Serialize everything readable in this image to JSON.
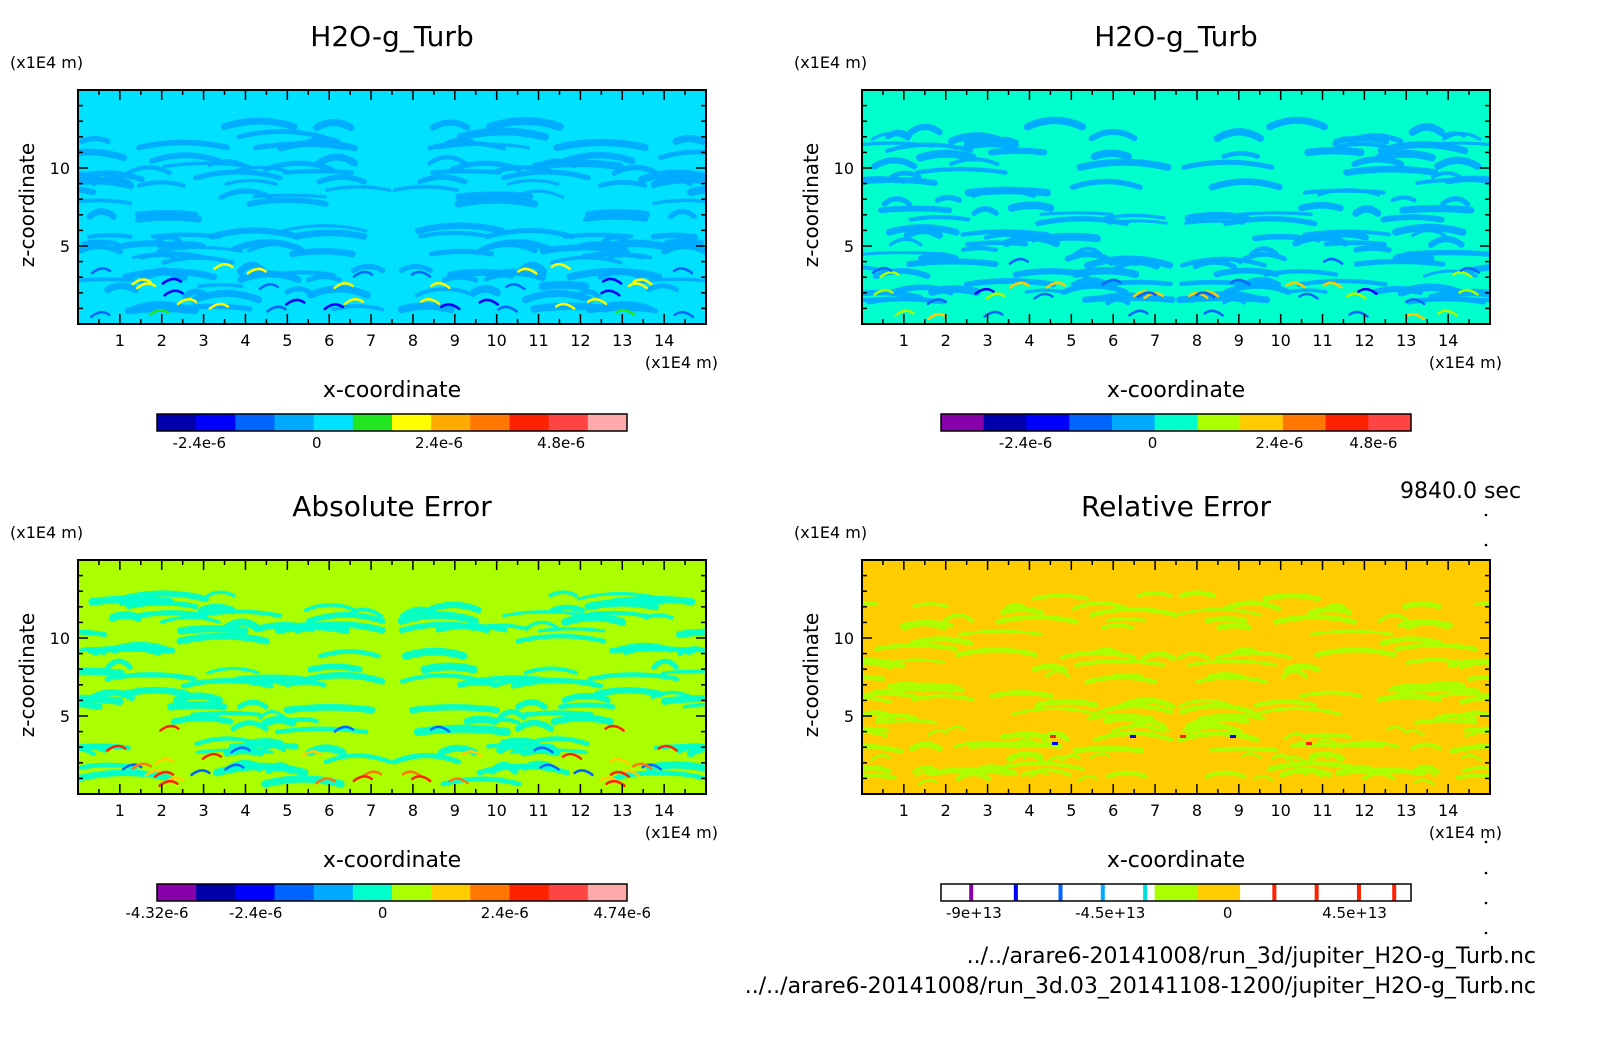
{
  "time_label": "9840.0 sec",
  "footer": {
    "file_1": "../../arare6-20141008/run_3d/jupiter_H2O-g_Turb.nc",
    "file_2": "../../arare6-20141008/run_3d.03_20141108-1200/jupiter_H2O-g_Turb.nc"
  },
  "chart_data": [
    {
      "type": "heatmap",
      "title": "H2O-g_Turb",
      "xlabel": "x-coordinate",
      "ylabel": "z-coordinate",
      "x_unit": "(x1E4 m)",
      "y_unit": "(x1E4 m)",
      "xlim": [
        0,
        15
      ],
      "ylim": [
        0,
        15
      ],
      "x_ticks": [
        "1",
        "2",
        "3",
        "4",
        "5",
        "6",
        "7",
        "8",
        "9",
        "10",
        "11",
        "12",
        "13",
        "14"
      ],
      "y_ticks": [
        "5",
        "10"
      ],
      "background": "#00e0ff",
      "colorbar": {
        "colors": [
          "#0000aa",
          "#0000ff",
          "#0064ff",
          "#00aaff",
          "#00e0ff",
          "#22e622",
          "#ffff00",
          "#ffaa00",
          "#ff7700",
          "#ff2200",
          "#ff4444",
          "#ffaaaa"
        ],
        "labels": [
          "-2.4e-6",
          "0",
          "2.4e-6",
          "4.8e-6"
        ]
      }
    },
    {
      "type": "heatmap",
      "title": "H2O-g_Turb",
      "xlabel": "x-coordinate",
      "ylabel": "z-coordinate",
      "x_unit": "(x1E4 m)",
      "y_unit": "(x1E4 m)",
      "xlim": [
        0,
        15
      ],
      "ylim": [
        0,
        15
      ],
      "x_ticks": [
        "1",
        "2",
        "3",
        "4",
        "5",
        "6",
        "7",
        "8",
        "9",
        "10",
        "11",
        "12",
        "13",
        "14"
      ],
      "y_ticks": [
        "5",
        "10"
      ],
      "background": "#00ffcc",
      "colorbar": {
        "colors": [
          "#8800aa",
          "#0000aa",
          "#0000ff",
          "#0064ff",
          "#00aaff",
          "#00ffcc",
          "#aaff00",
          "#ffcc00",
          "#ff7700",
          "#ff2200",
          "#ff4444"
        ],
        "labels": [
          "-2.4e-6",
          "0",
          "2.4e-6",
          "4.8e-6"
        ]
      }
    },
    {
      "type": "heatmap",
      "title": "Absolute Error",
      "xlabel": "x-coordinate",
      "ylabel": "z-coordinate",
      "x_unit": "(x1E4 m)",
      "y_unit": "(x1E4 m)",
      "xlim": [
        0,
        15
      ],
      "ylim": [
        0,
        15
      ],
      "x_ticks": [
        "1",
        "2",
        "3",
        "4",
        "5",
        "6",
        "7",
        "8",
        "9",
        "10",
        "11",
        "12",
        "13",
        "14"
      ],
      "y_ticks": [
        "5",
        "10"
      ],
      "background": "#aaff00",
      "colorbar": {
        "colors": [
          "#8800aa",
          "#0000aa",
          "#0000ff",
          "#0064ff",
          "#00aaff",
          "#00ffcc",
          "#aaff00",
          "#ffcc00",
          "#ff7700",
          "#ff2200",
          "#ff4444",
          "#ffaaaa"
        ],
        "labels": [
          "-4.32e-6",
          "-2.4e-6",
          "0",
          "2.4e-6",
          "4.74e-6"
        ]
      }
    },
    {
      "type": "heatmap",
      "title": "Relative Error",
      "xlabel": "x-coordinate",
      "ylabel": "z-coordinate",
      "x_unit": "(x1E4 m)",
      "y_unit": "(x1E4 m)",
      "xlim": [
        0,
        15
      ],
      "ylim": [
        0,
        15
      ],
      "x_ticks": [
        "1",
        "2",
        "3",
        "4",
        "5",
        "6",
        "7",
        "8",
        "9",
        "10",
        "11",
        "12",
        "13",
        "14"
      ],
      "y_ticks": [
        "5",
        "10"
      ],
      "background": "#ffcc00",
      "colorbar": {
        "colors": [
          "#ffffff",
          "#ffffff",
          "#ffffff",
          "#ffffff",
          "#ffffff",
          "#aaff00",
          "#ffcc00",
          "#ffffff",
          "#ffffff",
          "#ffffff",
          "#ffffff"
        ],
        "markers": [
          "#8800aa",
          "#0000ff",
          "#0064ff",
          "#00aaff",
          "#00e0e0",
          "#ff2200",
          "#ff2200",
          "#ff2200",
          "#ff2200"
        ],
        "labels": [
          "-9e+13",
          "-4.5e+13",
          "0",
          "4.5e+13"
        ]
      }
    }
  ]
}
